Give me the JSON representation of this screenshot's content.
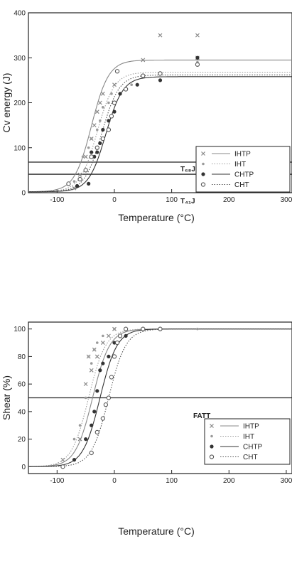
{
  "chart_data": [
    {
      "type": "scatter",
      "xlabel": "Temperature (°C)",
      "ylabel": "Cv energy (J)",
      "xlim": [
        -150,
        310
      ],
      "ylim": [
        0,
        400
      ],
      "xticks": [
        -100,
        0,
        100,
        200,
        300
      ],
      "xtick_labels": [
        "-100",
        "0",
        "100",
        "200",
        "300"
      ],
      "yticks": [
        0,
        100,
        200,
        300,
        400
      ],
      "ytick_labels": [
        "0",
        "100",
        "200",
        "300",
        "400"
      ],
      "legend_position": "bottom-right",
      "legend_labels": [
        "IHTP",
        "IHT",
        "CHTP",
        "CHT"
      ],
      "series": [
        {
          "name": "IHTP",
          "color": "#888888",
          "marker": "x",
          "line": "solid",
          "fit": {
            "lower": 2,
            "upper": 295,
            "t0": -40,
            "w": 15
          },
          "x": [
            -70,
            -60,
            -50,
            -40,
            -35,
            -30,
            -25,
            -20,
            0,
            50,
            80,
            145,
            145
          ],
          "y": [
            10,
            40,
            80,
            120,
            150,
            180,
            200,
            220,
            240,
            295,
            350,
            350,
            300
          ]
        },
        {
          "name": "IHT",
          "color": "#9a9a9a",
          "marker": "dot",
          "line": "dotted",
          "fit": {
            "lower": 2,
            "upper": 268,
            "t0": -30,
            "w": 15
          },
          "x": [
            -70,
            -55,
            -45,
            -40,
            -30,
            -25,
            -20,
            -10,
            -5,
            30,
            80,
            145
          ],
          "y": [
            25,
            80,
            100,
            120,
            140,
            160,
            190,
            200,
            220,
            240,
            265,
            290
          ]
        },
        {
          "name": "CHTP",
          "color": "#333333",
          "marker": "filled",
          "line": "solid",
          "fit": {
            "lower": 2,
            "upper": 258,
            "t0": -15,
            "w": 15
          },
          "x": [
            -65,
            -45,
            -40,
            -35,
            -30,
            -25,
            -20,
            -10,
            0,
            10,
            40,
            80,
            145
          ],
          "y": [
            15,
            20,
            90,
            80,
            90,
            110,
            140,
            160,
            180,
            220,
            240,
            250,
            300
          ]
        },
        {
          "name": "CHT",
          "color": "#555555",
          "marker": "open",
          "line": "dotted",
          "fit": {
            "lower": 2,
            "upper": 262,
            "t0": -22,
            "w": 15
          },
          "x": [
            -80,
            -60,
            -50,
            -40,
            -30,
            -20,
            -10,
            -5,
            0,
            5,
            20,
            50,
            80,
            145
          ],
          "y": [
            20,
            30,
            50,
            80,
            100,
            120,
            140,
            170,
            200,
            270,
            230,
            260,
            265,
            285
          ]
        }
      ],
      "reference_lines": [
        {
          "label": "T₆₈J",
          "y": 68
        },
        {
          "label": "T₄₁J",
          "y": 41
        }
      ]
    },
    {
      "type": "scatter",
      "xlabel": "Temperature (°C)",
      "ylabel": "Shear (%)",
      "xlim": [
        -150,
        310
      ],
      "ylim": [
        -5,
        105
      ],
      "xticks": [
        -100,
        0,
        100,
        200,
        300
      ],
      "xtick_labels": [
        "-100",
        "0",
        "100",
        "200",
        "300"
      ],
      "yticks": [
        0,
        20,
        40,
        60,
        80,
        100
      ],
      "ytick_labels": [
        "0",
        "20",
        "40",
        "60",
        "80",
        "100"
      ],
      "legend_position": "bottom-right",
      "legend_labels": [
        "IHTP",
        "IHT",
        "CHTP",
        "CHT"
      ],
      "series": [
        {
          "name": "IHTP",
          "color": "#888888",
          "marker": "x",
          "line": "solid",
          "fit": {
            "lower": 0,
            "upper": 100,
            "t0": -38,
            "w": 15
          },
          "x": [
            -90,
            -60,
            -50,
            -45,
            -40,
            -35,
            -30,
            -20,
            -10,
            0
          ],
          "y": [
            5,
            20,
            60,
            80,
            70,
            85,
            80,
            90,
            95,
            100
          ]
        },
        {
          "name": "IHT",
          "color": "#9a9a9a",
          "marker": "dot",
          "line": "dotted",
          "fit": {
            "lower": 0,
            "upper": 100,
            "t0": -45,
            "w": 15
          },
          "x": [
            -70,
            -60,
            -50,
            -45,
            -40,
            -35,
            -30,
            -20,
            0,
            20,
            50,
            145
          ],
          "y": [
            20,
            30,
            50,
            80,
            75,
            85,
            90,
            95,
            100,
            100,
            100,
            100
          ]
        },
        {
          "name": "CHTP",
          "color": "#333333",
          "marker": "filled",
          "line": "solid",
          "fit": {
            "lower": 0,
            "upper": 100,
            "t0": -25,
            "w": 15
          },
          "x": [
            -70,
            -50,
            -40,
            -35,
            -30,
            -25,
            -20,
            -10,
            0,
            20,
            50,
            80
          ],
          "y": [
            5,
            20,
            30,
            40,
            55,
            70,
            75,
            80,
            90,
            95,
            100,
            100
          ]
        },
        {
          "name": "CHT",
          "color": "#555555",
          "marker": "open",
          "line": "dotted",
          "fit": {
            "lower": 0,
            "upper": 100,
            "t0": -10,
            "w": 15
          },
          "x": [
            -90,
            -40,
            -30,
            -20,
            -15,
            -10,
            -5,
            0,
            5,
            10,
            20,
            50,
            80
          ],
          "y": [
            0,
            10,
            25,
            35,
            45,
            50,
            65,
            80,
            90,
            95,
            100,
            100,
            100
          ]
        }
      ],
      "reference_lines": [
        {
          "label": "FATT",
          "y": 50
        }
      ]
    }
  ]
}
